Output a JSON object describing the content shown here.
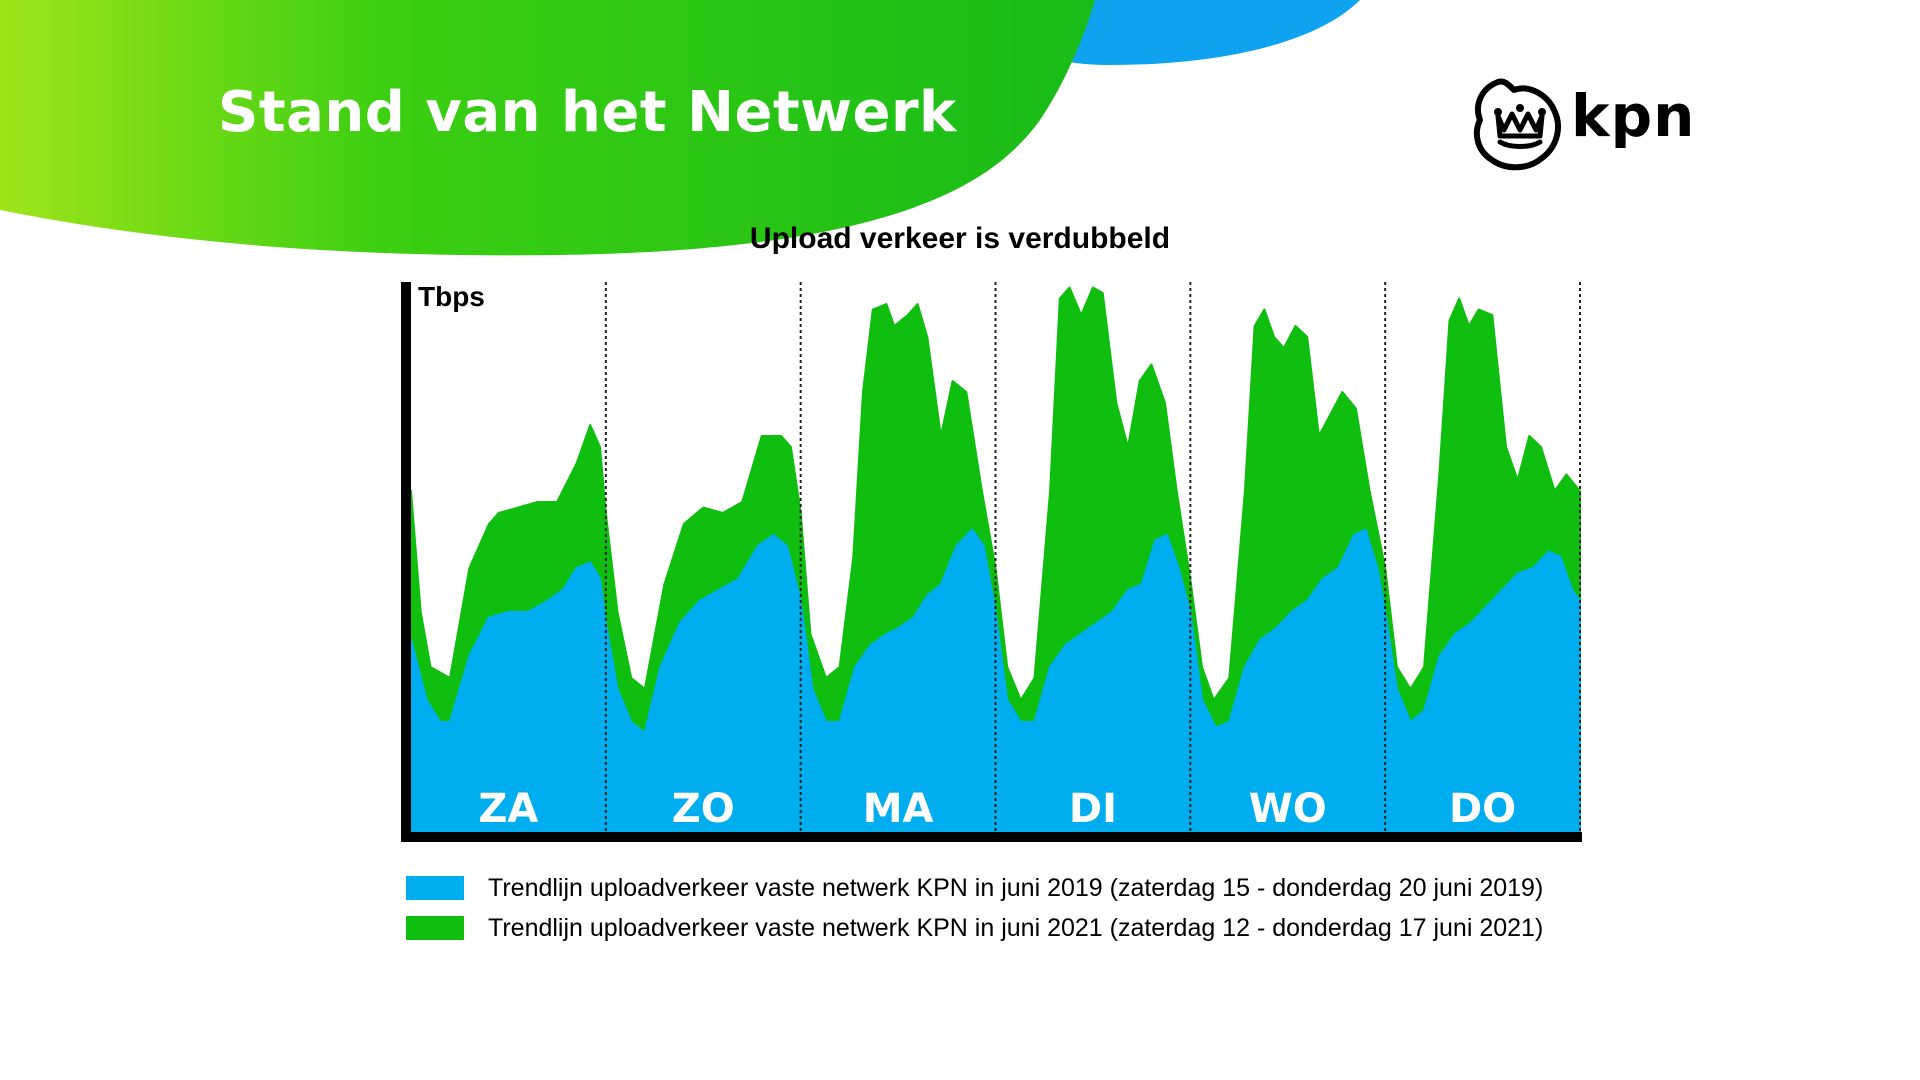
{
  "slide": {
    "title": "Stand van het Netwerk",
    "brand": "kpn",
    "colors": {
      "green_wave": "#1fc41f",
      "lime": "#9be51b",
      "blue_wave": "#0ea2ef"
    },
    "icon": "kpn-crown-icon"
  },
  "chart_data": {
    "type": "area",
    "title": "Upload verkeer is verdubbeld",
    "ylabel": "Tbps",
    "xlabel": "",
    "y_values_shown": false,
    "ylim": [
      0,
      100
    ],
    "grid": false,
    "legend_position": "bottom",
    "categories": [
      "ZA",
      "ZO",
      "MA",
      "DI",
      "WO",
      "DO"
    ],
    "x_unit": "day index (0-6)",
    "xlim": [
      0,
      6
    ],
    "series": [
      {
        "key": "green",
        "name": "Trendlijn uploadverkeer vaste netwerk KPN in juni 2021 (zaterdag 12 - donderdag 17 juni 2021)",
        "color": "#0fbe0f",
        "points": [
          [
            0.0,
            62
          ],
          [
            0.05,
            40
          ],
          [
            0.1,
            30
          ],
          [
            0.2,
            28
          ],
          [
            0.3,
            48
          ],
          [
            0.4,
            56
          ],
          [
            0.45,
            58
          ],
          [
            0.55,
            59
          ],
          [
            0.65,
            60
          ],
          [
            0.75,
            60
          ],
          [
            0.85,
            67
          ],
          [
            0.92,
            74
          ],
          [
            0.97,
            70
          ],
          [
            1.0,
            58
          ],
          [
            1.06,
            40
          ],
          [
            1.13,
            28
          ],
          [
            1.2,
            26
          ],
          [
            1.3,
            45
          ],
          [
            1.4,
            56
          ],
          [
            1.5,
            59
          ],
          [
            1.6,
            58
          ],
          [
            1.7,
            60
          ],
          [
            1.8,
            72
          ],
          [
            1.9,
            72
          ],
          [
            1.95,
            70
          ],
          [
            2.0,
            58
          ],
          [
            2.05,
            36
          ],
          [
            2.13,
            28
          ],
          [
            2.2,
            30
          ],
          [
            2.27,
            50
          ],
          [
            2.32,
            80
          ],
          [
            2.37,
            95
          ],
          [
            2.44,
            96
          ],
          [
            2.48,
            92
          ],
          [
            2.55,
            94
          ],
          [
            2.6,
            96
          ],
          [
            2.65,
            90
          ],
          [
            2.72,
            72
          ],
          [
            2.78,
            82
          ],
          [
            2.85,
            80
          ],
          [
            2.93,
            62
          ],
          [
            3.0,
            48
          ],
          [
            3.06,
            30
          ],
          [
            3.13,
            24
          ],
          [
            3.2,
            28
          ],
          [
            3.28,
            62
          ],
          [
            3.33,
            97
          ],
          [
            3.38,
            99
          ],
          [
            3.44,
            94
          ],
          [
            3.5,
            99
          ],
          [
            3.55,
            98
          ],
          [
            3.62,
            78
          ],
          [
            3.68,
            70
          ],
          [
            3.74,
            82
          ],
          [
            3.8,
            85
          ],
          [
            3.87,
            78
          ],
          [
            3.93,
            62
          ],
          [
            4.0,
            46
          ],
          [
            4.06,
            30
          ],
          [
            4.12,
            24
          ],
          [
            4.2,
            28
          ],
          [
            4.28,
            62
          ],
          [
            4.33,
            92
          ],
          [
            4.38,
            95
          ],
          [
            4.43,
            90
          ],
          [
            4.48,
            88
          ],
          [
            4.54,
            92
          ],
          [
            4.6,
            90
          ],
          [
            4.66,
            72
          ],
          [
            4.72,
            76
          ],
          [
            4.78,
            80
          ],
          [
            4.85,
            77
          ],
          [
            4.92,
            62
          ],
          [
            5.0,
            48
          ],
          [
            5.06,
            30
          ],
          [
            5.13,
            26
          ],
          [
            5.2,
            30
          ],
          [
            5.28,
            66
          ],
          [
            5.33,
            93
          ],
          [
            5.38,
            97
          ],
          [
            5.43,
            92
          ],
          [
            5.48,
            95
          ],
          [
            5.55,
            94
          ],
          [
            5.62,
            70
          ],
          [
            5.68,
            64
          ],
          [
            5.74,
            72
          ],
          [
            5.8,
            70
          ],
          [
            5.87,
            62
          ],
          [
            5.93,
            65
          ],
          [
            6.0,
            62
          ]
        ]
      },
      {
        "key": "blue",
        "name": "Trendlijn uploadverkeer vaste netwerk KPN in juni 2019 (zaterdag 15 - donderdag 20 juni 2019)",
        "color": "#00aeef",
        "points": [
          [
            0.0,
            35
          ],
          [
            0.08,
            24
          ],
          [
            0.15,
            20
          ],
          [
            0.2,
            20
          ],
          [
            0.3,
            32
          ],
          [
            0.4,
            39
          ],
          [
            0.5,
            40
          ],
          [
            0.6,
            40
          ],
          [
            0.7,
            42
          ],
          [
            0.78,
            44
          ],
          [
            0.85,
            48
          ],
          [
            0.92,
            49
          ],
          [
            0.97,
            46
          ],
          [
            1.0,
            38
          ],
          [
            1.06,
            26
          ],
          [
            1.13,
            20
          ],
          [
            1.2,
            18
          ],
          [
            1.28,
            30
          ],
          [
            1.38,
            38
          ],
          [
            1.48,
            42
          ],
          [
            1.58,
            44
          ],
          [
            1.68,
            46
          ],
          [
            1.78,
            52
          ],
          [
            1.86,
            54
          ],
          [
            1.93,
            52
          ],
          [
            2.0,
            42
          ],
          [
            2.06,
            26
          ],
          [
            2.13,
            20
          ],
          [
            2.2,
            20
          ],
          [
            2.28,
            30
          ],
          [
            2.36,
            34
          ],
          [
            2.44,
            36
          ],
          [
            2.5,
            37
          ],
          [
            2.58,
            39
          ],
          [
            2.65,
            43
          ],
          [
            2.72,
            45
          ],
          [
            2.8,
            52
          ],
          [
            2.88,
            55
          ],
          [
            2.94,
            52
          ],
          [
            3.0,
            40
          ],
          [
            3.06,
            24
          ],
          [
            3.13,
            20
          ],
          [
            3.2,
            20
          ],
          [
            3.28,
            30
          ],
          [
            3.36,
            34
          ],
          [
            3.44,
            36
          ],
          [
            3.52,
            38
          ],
          [
            3.6,
            40
          ],
          [
            3.68,
            44
          ],
          [
            3.75,
            45
          ],
          [
            3.82,
            53
          ],
          [
            3.88,
            54
          ],
          [
            3.94,
            48
          ],
          [
            4.0,
            40
          ],
          [
            4.06,
            24
          ],
          [
            4.13,
            19
          ],
          [
            4.2,
            20
          ],
          [
            4.28,
            30
          ],
          [
            4.36,
            35
          ],
          [
            4.44,
            37
          ],
          [
            4.52,
            40
          ],
          [
            4.6,
            42
          ],
          [
            4.68,
            46
          ],
          [
            4.76,
            48
          ],
          [
            4.84,
            54
          ],
          [
            4.9,
            55
          ],
          [
            4.96,
            48
          ],
          [
            5.0,
            40
          ],
          [
            5.06,
            26
          ],
          [
            5.13,
            20
          ],
          [
            5.2,
            22
          ],
          [
            5.28,
            32
          ],
          [
            5.36,
            36
          ],
          [
            5.44,
            38
          ],
          [
            5.52,
            41
          ],
          [
            5.6,
            44
          ],
          [
            5.68,
            47
          ],
          [
            5.76,
            48
          ],
          [
            5.84,
            51
          ],
          [
            5.9,
            50
          ],
          [
            5.96,
            44
          ],
          [
            6.0,
            42
          ]
        ]
      }
    ]
  }
}
